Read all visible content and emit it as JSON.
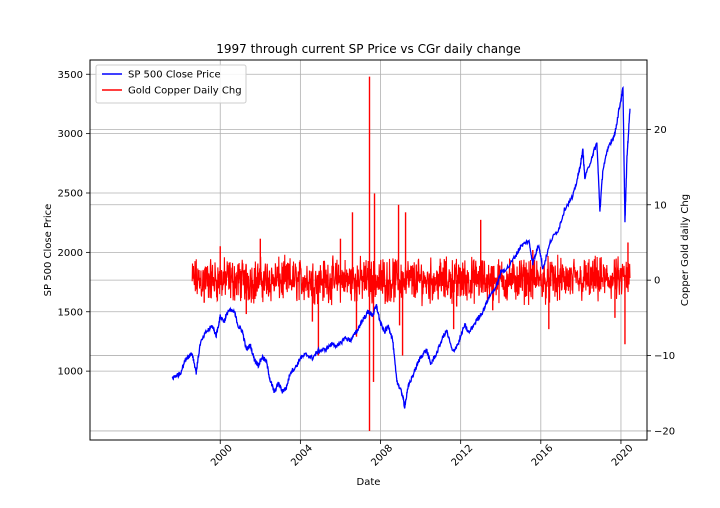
{
  "chart_data": {
    "type": "line",
    "title": "1997 through current SP Price vs CGr daily change",
    "xlabel": "Date",
    "ylabel_left": "SP 500 Close Price",
    "ylabel_right": "Copper Gold daily Chg",
    "x_range": [
      1993.5,
      2021.3
    ],
    "ylim_left": [
      420,
      3620
    ],
    "ylim_right": [
      -21.2,
      29.2
    ],
    "x_ticks": [
      {
        "value": 2000,
        "label": "2000"
      },
      {
        "value": 2004,
        "label": "2004"
      },
      {
        "value": 2008,
        "label": "2008"
      },
      {
        "value": 2012,
        "label": "2012"
      },
      {
        "value": 2016,
        "label": "2016"
      },
      {
        "value": 2020,
        "label": "2020"
      }
    ],
    "y_left_ticks": [
      {
        "value": 1000,
        "label": "1000"
      },
      {
        "value": 1500,
        "label": "1500"
      },
      {
        "value": 2000,
        "label": "2000"
      },
      {
        "value": 2500,
        "label": "2500"
      },
      {
        "value": 3000,
        "label": "3000"
      },
      {
        "value": 3500,
        "label": "3500"
      }
    ],
    "y_right_ticks": [
      {
        "value": -20,
        "label": "−20"
      },
      {
        "value": -10,
        "label": "−10"
      },
      {
        "value": 0,
        "label": "0"
      },
      {
        "value": 10,
        "label": "10"
      },
      {
        "value": 20,
        "label": "20"
      }
    ],
    "grid": true,
    "legend_position": "upper-left",
    "series": [
      {
        "name": "SP 500 Close Price",
        "axis": "left",
        "color": "#0000ff",
        "points": [
          [
            1997.6,
            940
          ],
          [
            1997.8,
            960
          ],
          [
            1998.0,
            980
          ],
          [
            1998.3,
            1110
          ],
          [
            1998.6,
            1150
          ],
          [
            1998.8,
            990
          ],
          [
            1999.0,
            1230
          ],
          [
            1999.3,
            1330
          ],
          [
            1999.6,
            1380
          ],
          [
            1999.8,
            1300
          ],
          [
            2000.0,
            1460
          ],
          [
            2000.2,
            1420
          ],
          [
            2000.4,
            1510
          ],
          [
            2000.7,
            1500
          ],
          [
            2000.9,
            1380
          ],
          [
            2001.1,
            1340
          ],
          [
            2001.3,
            1180
          ],
          [
            2001.5,
            1220
          ],
          [
            2001.7,
            1100
          ],
          [
            2001.9,
            1050
          ],
          [
            2002.1,
            1120
          ],
          [
            2002.3,
            1080
          ],
          [
            2002.5,
            920
          ],
          [
            2002.7,
            820
          ],
          [
            2002.9,
            900
          ],
          [
            2003.1,
            830
          ],
          [
            2003.3,
            860
          ],
          [
            2003.5,
            990
          ],
          [
            2003.8,
            1040
          ],
          [
            2004.0,
            1110
          ],
          [
            2004.3,
            1140
          ],
          [
            2004.6,
            1110
          ],
          [
            2004.9,
            1170
          ],
          [
            2005.2,
            1180
          ],
          [
            2005.6,
            1230
          ],
          [
            2005.9,
            1210
          ],
          [
            2006.2,
            1280
          ],
          [
            2006.5,
            1260
          ],
          [
            2006.8,
            1330
          ],
          [
            2007.1,
            1430
          ],
          [
            2007.4,
            1500
          ],
          [
            2007.6,
            1470
          ],
          [
            2007.8,
            1550
          ],
          [
            2008.0,
            1400
          ],
          [
            2008.2,
            1330
          ],
          [
            2008.4,
            1380
          ],
          [
            2008.6,
            1270
          ],
          [
            2008.8,
            930
          ],
          [
            2008.9,
            880
          ],
          [
            2009.1,
            800
          ],
          [
            2009.2,
            700
          ],
          [
            2009.4,
            880
          ],
          [
            2009.7,
            1000
          ],
          [
            2010.0,
            1120
          ],
          [
            2010.3,
            1180
          ],
          [
            2010.5,
            1060
          ],
          [
            2010.8,
            1150
          ],
          [
            2011.1,
            1280
          ],
          [
            2011.3,
            1340
          ],
          [
            2011.6,
            1160
          ],
          [
            2011.9,
            1240
          ],
          [
            2012.2,
            1390
          ],
          [
            2012.4,
            1320
          ],
          [
            2012.8,
            1430
          ],
          [
            2013.1,
            1500
          ],
          [
            2013.4,
            1620
          ],
          [
            2013.8,
            1720
          ],
          [
            2014.0,
            1830
          ],
          [
            2014.4,
            1880
          ],
          [
            2014.8,
            1990
          ],
          [
            2015.0,
            2050
          ],
          [
            2015.4,
            2100
          ],
          [
            2015.6,
            1910
          ],
          [
            2015.9,
            2070
          ],
          [
            2016.1,
            1860
          ],
          [
            2016.5,
            2100
          ],
          [
            2016.9,
            2200
          ],
          [
            2017.2,
            2370
          ],
          [
            2017.6,
            2470
          ],
          [
            2017.9,
            2670
          ],
          [
            2018.1,
            2860
          ],
          [
            2018.2,
            2620
          ],
          [
            2018.6,
            2830
          ],
          [
            2018.8,
            2920
          ],
          [
            2018.95,
            2350
          ],
          [
            2019.1,
            2700
          ],
          [
            2019.4,
            2900
          ],
          [
            2019.7,
            3000
          ],
          [
            2019.9,
            3200
          ],
          [
            2020.1,
            3380
          ],
          [
            2020.2,
            2250
          ],
          [
            2020.3,
            2800
          ],
          [
            2020.45,
            3210
          ]
        ]
      },
      {
        "name": "Gold Copper Daily Chg",
        "axis": "right",
        "color": "#ff0000",
        "x_start": 1998.6,
        "x_end": 2020.45,
        "band_amplitude": 3.2,
        "spikes": [
          [
            1999.2,
            -3
          ],
          [
            2000.0,
            4.5
          ],
          [
            2001.3,
            -4.5
          ],
          [
            2002.0,
            5.5
          ],
          [
            2004.6,
            -5.5
          ],
          [
            2004.9,
            -10
          ],
          [
            2006.0,
            5.5
          ],
          [
            2006.6,
            9
          ],
          [
            2006.8,
            -7.5
          ],
          [
            2007.45,
            27
          ],
          [
            2007.45,
            -20
          ],
          [
            2007.65,
            -13.5
          ],
          [
            2007.7,
            11.5
          ],
          [
            2008.9,
            10
          ],
          [
            2008.95,
            -6
          ],
          [
            2009.1,
            -10
          ],
          [
            2009.25,
            9
          ],
          [
            2011.65,
            -6.5
          ],
          [
            2011.8,
            -3.5
          ],
          [
            2013.0,
            8
          ],
          [
            2013.6,
            -4
          ],
          [
            2015.6,
            4
          ],
          [
            2016.4,
            -6.5
          ],
          [
            2019.7,
            -5
          ],
          [
            2020.2,
            -8.5
          ],
          [
            2020.35,
            5
          ]
        ]
      }
    ]
  }
}
